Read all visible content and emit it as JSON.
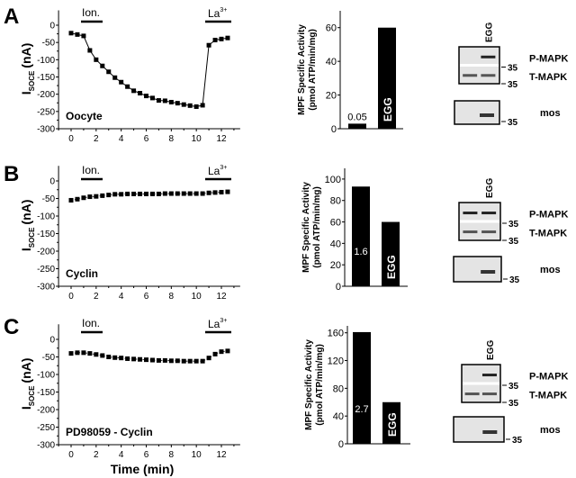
{
  "figure": {
    "panel_letters": [
      "A",
      "B",
      "C"
    ],
    "xlabel": "Time (min)",
    "ylabel_main": "I",
    "ylabel_sub": "SOCE",
    "ylabel_unit": "(nA)",
    "ion_label": "Ion.",
    "la_label": "La",
    "la_sup": "3+",
    "bar_ylabel_line1": "MPF Specific Activity",
    "bar_ylabel_line2": "(pmol ATP/min/mg)",
    "blot_lane_label": "EGG",
    "blot_labels": [
      "P-MAPK",
      "T-MAPK",
      "mos"
    ],
    "marker": "35"
  },
  "chart_data": [
    {
      "type": "line",
      "panel": "A",
      "annotation": "Oocyte",
      "xlabel": "Time (min)",
      "ylabel": "I SOCE (nA)",
      "xlim": [
        -1,
        13.5
      ],
      "ylim": [
        -300,
        30
      ],
      "xticks": [
        0,
        2,
        4,
        6,
        8,
        10,
        12
      ],
      "yticks": [
        0,
        -50,
        -100,
        -150,
        -200,
        -250,
        -300
      ],
      "x": [
        0,
        0.5,
        1,
        1.5,
        2,
        2.5,
        3,
        3.5,
        4,
        4.5,
        5,
        5.5,
        6,
        6.5,
        7,
        7.5,
        8,
        8.5,
        9,
        9.5,
        10,
        10.5,
        11,
        11.5,
        12,
        12.5
      ],
      "y": [
        -23,
        -27,
        -31,
        -73,
        -100,
        -118,
        -135,
        -152,
        -165,
        -178,
        -190,
        -197,
        -205,
        -211,
        -218,
        -219,
        -223,
        -226,
        -230,
        -233,
        -236,
        -232,
        -58,
        -43,
        -40,
        -37
      ],
      "connected": true
    },
    {
      "type": "line",
      "panel": "B",
      "annotation": "Cyclin",
      "xlabel": "Time (min)",
      "ylabel": "I SOCE (nA)",
      "xlim": [
        -1,
        13.5
      ],
      "ylim": [
        -300,
        30
      ],
      "xticks": [
        0,
        2,
        4,
        6,
        8,
        10,
        12
      ],
      "yticks": [
        0,
        -50,
        -100,
        -150,
        -200,
        -250,
        -300
      ],
      "x": [
        0,
        0.5,
        1,
        1.5,
        2,
        2.5,
        3,
        3.5,
        4,
        4.5,
        5,
        5.5,
        6,
        6.5,
        7,
        7.5,
        8,
        8.5,
        9,
        9.5,
        10,
        10.5,
        11,
        11.5,
        12,
        12.5
      ],
      "y": [
        -55,
        -52,
        -48,
        -45,
        -44,
        -42,
        -40,
        -38,
        -38,
        -37,
        -37,
        -37,
        -37,
        -37,
        -37,
        -36,
        -36,
        -36,
        -36,
        -36,
        -36,
        -36,
        -34,
        -33,
        -32,
        -31
      ],
      "connected": false
    },
    {
      "type": "line",
      "panel": "C",
      "annotation": "PD98059 - Cyclin",
      "xlabel": "Time (min)",
      "ylabel": "I SOCE (nA)",
      "xlim": [
        -1,
        13.5
      ],
      "ylim": [
        -300,
        30
      ],
      "xticks": [
        0,
        2,
        4,
        6,
        8,
        10,
        12
      ],
      "yticks": [
        0,
        -50,
        -100,
        -150,
        -200,
        -250,
        -300
      ],
      "x": [
        0,
        0.5,
        1,
        1.5,
        2,
        2.5,
        3,
        3.5,
        4,
        4.5,
        5,
        5.5,
        6,
        6.5,
        7,
        7.5,
        8,
        8.5,
        9,
        9.5,
        10,
        10.5,
        11,
        11.5,
        12,
        12.5
      ],
      "y": [
        -40,
        -38,
        -38,
        -40,
        -43,
        -46,
        -50,
        -52,
        -53,
        -55,
        -56,
        -57,
        -58,
        -59,
        -60,
        -60,
        -61,
        -61,
        -62,
        -62,
        -62,
        -62,
        -53,
        -42,
        -35,
        -33
      ],
      "connected": false
    },
    {
      "type": "bar",
      "panel": "A",
      "ylabel": "MPF Specific Activity (pmol ATP/min/mg)",
      "ylim": [
        0,
        70
      ],
      "yticks": [
        0,
        20,
        40,
        60
      ],
      "categories": [
        "Oocyte",
        "EGG"
      ],
      "values": [
        3,
        60
      ],
      "bar_labels": [
        "0.05",
        "EGG"
      ]
    },
    {
      "type": "bar",
      "panel": "B",
      "ylabel": "MPF Specific Activity (pmol ATP/min/mg)",
      "ylim": [
        0,
        110
      ],
      "yticks": [
        0,
        20,
        40,
        60,
        80,
        100
      ],
      "categories": [
        "Cyclin",
        "EGG"
      ],
      "values": [
        93,
        60
      ],
      "bar_labels": [
        "1.6",
        "EGG"
      ]
    },
    {
      "type": "bar",
      "panel": "C",
      "ylabel": "MPF Specific Activity (pmol ATP/min/mg)",
      "ylim": [
        0,
        170
      ],
      "yticks": [
        0,
        40,
        80,
        120,
        160
      ],
      "categories": [
        "PD98059 - Cyclin",
        "EGG"
      ],
      "values": [
        161,
        60
      ],
      "bar_labels": [
        "2.7",
        "EGG"
      ]
    }
  ],
  "blots": [
    {
      "panel": "A",
      "pmapk_lanes": [
        0,
        1
      ],
      "tmapk_lanes": [
        1,
        1
      ],
      "mos_lanes": [
        0,
        1
      ]
    },
    {
      "panel": "B",
      "pmapk_lanes": [
        1,
        1
      ],
      "tmapk_lanes": [
        1,
        1
      ],
      "mos_lanes": [
        0,
        1
      ]
    },
    {
      "panel": "C",
      "pmapk_lanes": [
        0,
        1
      ],
      "tmapk_lanes": [
        1,
        1
      ],
      "mos_lanes": [
        0,
        1
      ]
    }
  ]
}
